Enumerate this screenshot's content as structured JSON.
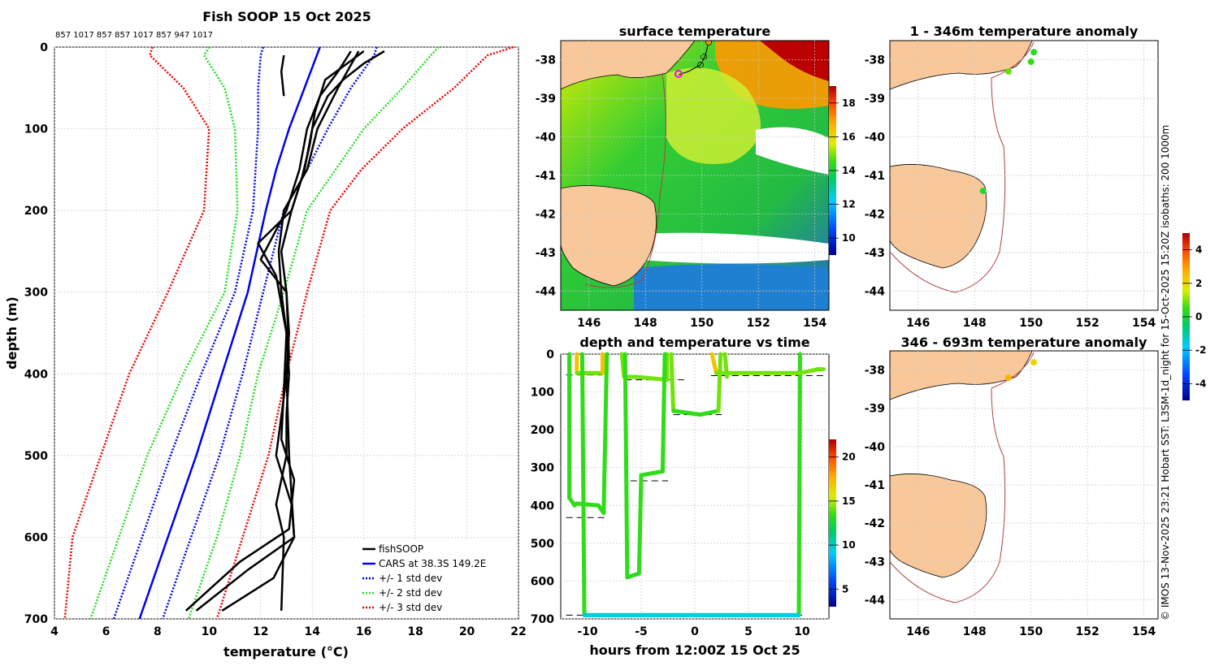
{
  "footer_text": "© IMOS 13-Nov-2025 23:21 Hobart SST: L3SM-1d_night for 15-Oct-2025 15:20Z isobaths: 200  1000m",
  "chart_data": [
    {
      "type": "line",
      "title": "Fish SOOP 15 Oct 2025",
      "subtitle": "857 1017 857 857 1017 857 947 1017",
      "xlabel": "temperature (°C)",
      "ylabel": "depth (m)",
      "xlim": [
        4,
        22
      ],
      "ylim": [
        700,
        0
      ],
      "xticks": [
        4,
        6,
        8,
        10,
        12,
        14,
        16,
        18,
        20,
        22
      ],
      "yticks": [
        0,
        100,
        200,
        300,
        400,
        500,
        600,
        700
      ],
      "legend_position": "bottom-right",
      "legend": [
        "fishSOOP",
        "CARS at 38.3S 149.2E",
        "+/- 1 std dev",
        "+/- 2 std dev",
        "+/- 3 std dev"
      ],
      "colors": {
        "fishsoop": "#000000",
        "cars": "#0000ee",
        "std1": "#0000ee",
        "std2": "#22dd22",
        "std3": "#ee0000"
      },
      "series": [
        {
          "name": "CARS at 38.3S 149.2E",
          "depth": [
            0,
            50,
            100,
            150,
            200,
            300,
            400,
            500,
            600,
            700
          ],
          "temp": [
            14.3,
            13.7,
            13.1,
            12.6,
            12.2,
            11.5,
            10.5,
            9.5,
            8.4,
            7.3
          ]
        },
        {
          "name": "-1 std",
          "depth": [
            0,
            10,
            50,
            100,
            200,
            300,
            400,
            500,
            600,
            700
          ],
          "temp": [
            12.1,
            12.0,
            11.9,
            11.9,
            11.7,
            11.0,
            9.7,
            8.5,
            7.4,
            6.3
          ]
        },
        {
          "name": "+1 std",
          "depth": [
            0,
            10,
            50,
            100,
            150,
            200,
            300,
            400,
            500,
            600,
            700
          ],
          "temp": [
            16.5,
            16.4,
            15.5,
            14.6,
            13.8,
            12.9,
            12.1,
            11.3,
            10.4,
            9.3,
            8.2
          ]
        },
        {
          "name": "-2 std",
          "depth": [
            0,
            10,
            50,
            100,
            200,
            300,
            400,
            500,
            600,
            700
          ],
          "temp": [
            10.0,
            9.8,
            10.6,
            11.0,
            11.1,
            10.6,
            9.0,
            7.6,
            6.5,
            5.4
          ]
        },
        {
          "name": "+2 std",
          "depth": [
            0,
            10,
            50,
            100,
            150,
            200,
            300,
            400,
            500,
            600,
            700
          ],
          "temp": [
            18.9,
            18.6,
            17.5,
            16.0,
            14.9,
            13.8,
            12.9,
            11.9,
            11.2,
            10.3,
            9.2
          ]
        },
        {
          "name": "-3 std",
          "depth": [
            0,
            10,
            50,
            100,
            200,
            300,
            400,
            500,
            600,
            700
          ],
          "temp": [
            7.8,
            7.7,
            9.0,
            10.0,
            9.8,
            8.4,
            6.9,
            5.8,
            4.7,
            4.4
          ]
        },
        {
          "name": "+3 std",
          "depth": [
            0,
            10,
            50,
            100,
            150,
            200,
            300,
            400,
            500,
            600,
            700
          ],
          "temp": [
            21.8,
            20.8,
            19.5,
            17.5,
            15.9,
            14.7,
            13.8,
            13.0,
            12.3,
            11.3,
            10.3
          ]
        },
        {
          "name": "fishSOOP 1",
          "depth": [
            5,
            20,
            40,
            60,
            100,
            150,
            200,
            250,
            300,
            350,
            400,
            500,
            600,
            650,
            690
          ],
          "temp": [
            16.8,
            16.0,
            15.2,
            14.6,
            14.0,
            13.7,
            13.2,
            12.8,
            13.0,
            13.1,
            13.0,
            13.1,
            13.3,
            12.5,
            10.5
          ]
        },
        {
          "name": "fishSOOP 2",
          "depth": [
            5,
            30,
            60,
            100,
            150,
            200,
            260,
            300,
            380,
            500,
            560,
            600,
            640,
            690
          ],
          "temp": [
            15.5,
            15.0,
            14.3,
            13.8,
            13.5,
            13.0,
            12.0,
            13.0,
            13.1,
            12.6,
            13.2,
            13.3,
            11.5,
            9.5
          ]
        },
        {
          "name": "fishSOOP 3",
          "depth": [
            5,
            40,
            80,
            120,
            160,
            200,
            240,
            280,
            350,
            420,
            480,
            530,
            590,
            630,
            690
          ],
          "temp": [
            16.0,
            14.5,
            14.1,
            13.9,
            13.6,
            13.2,
            11.9,
            12.6,
            13.0,
            12.9,
            12.8,
            13.3,
            13.1,
            11.2,
            9.1
          ]
        },
        {
          "name": "fishSOOP 4",
          "depth": [
            5,
            50,
            100,
            150,
            200,
            250,
            300,
            350,
            400,
            450,
            500,
            560,
            600,
            690
          ],
          "temp": [
            15.8,
            15.0,
            14.2,
            13.8,
            12.9,
            12.7,
            12.8,
            13.0,
            13.1,
            13.0,
            13.0,
            12.6,
            12.9,
            12.8
          ]
        },
        {
          "name": "fishSOOP 5",
          "depth": [
            10,
            30,
            60
          ],
          "temp": [
            12.9,
            12.8,
            12.9
          ]
        }
      ]
    },
    {
      "type": "heatmap",
      "title": "surface temperature",
      "xlim": [
        145,
        154.5
      ],
      "ylim": [
        -44.5,
        -37.5
      ],
      "xticks": [
        146,
        148,
        150,
        152,
        154
      ],
      "yticks": [
        -38,
        -39,
        -40,
        -41,
        -42,
        -43,
        -44
      ],
      "colorbar": {
        "ticks": [
          10,
          12,
          14,
          16,
          18
        ],
        "range": [
          9,
          19
        ]
      },
      "track": [
        [
          150.7,
          -37.6
        ],
        [
          150.6,
          -37.8
        ],
        [
          150.5,
          -38.0
        ],
        [
          150.0,
          -38.2
        ],
        [
          149.5,
          -38.3
        ],
        [
          149.2,
          -38.4
        ]
      ],
      "current_position": [
        149.2,
        -38.4
      ]
    },
    {
      "type": "line",
      "title": "depth and temperature vs time",
      "xlabel": "hours from 12:00Z 15 Oct 25",
      "xlim": [
        -12.5,
        12.5
      ],
      "ylim": [
        700,
        0
      ],
      "xticks": [
        -10,
        -5,
        0,
        5,
        10
      ],
      "yticks": [
        0,
        100,
        200,
        300,
        400,
        500,
        600,
        700
      ],
      "colorbar": {
        "ticks": [
          5,
          10,
          15,
          20
        ],
        "range": [
          3,
          22
        ]
      },
      "series": [
        {
          "name": "depth",
          "hours": [
            -11.7,
            -11.7,
            -11.4,
            -11.2,
            -11.1,
            -10.8,
            -10.7,
            -10.5,
            -10.3,
            -10.0,
            -9.8,
            -9.5,
            -9.2,
            -8.0,
            -7.2,
            -6.8,
            -6.6,
            -6.4,
            -6.4,
            -6.2,
            -5.0,
            -4.0,
            -3.5,
            -3.4,
            -2.8,
            -2.6,
            -2.4,
            -2.3,
            -2.0,
            -1.0,
            0.0,
            1.0,
            1.3,
            1.6,
            2.5,
            2.7,
            3.0,
            5.0,
            8.0,
            9.5,
            9.8,
            10.0,
            10.2,
            12.0
          ],
          "depth": [
            0,
            380,
            400,
            400,
            0,
            40,
            0,
            0,
            690,
            690,
            690,
            690,
            690,
            690,
            690,
            690,
            690,
            690,
            690,
            690,
            690,
            690,
            690,
            690,
            690,
            690,
            690,
            690,
            690,
            690,
            690,
            690,
            690,
            690,
            690,
            690,
            690,
            690,
            690,
            690,
            690,
            690,
            40,
            40
          ]
        }
      ],
      "reference_depths": [
        {
          "from": -12,
          "to": -8.6,
          "depth": 55
        },
        {
          "from": -12,
          "to": -8.4,
          "depth": 432
        },
        {
          "from": -6.5,
          "to": -1.0,
          "depth": 68
        },
        {
          "from": -6.0,
          "to": -2.5,
          "depth": 335
        },
        {
          "from": -2.0,
          "to": 2.5,
          "depth": 160
        },
        {
          "from": 1.5,
          "to": 12.0,
          "depth": 57
        },
        {
          "from": -12,
          "to": 10,
          "depth": 690
        }
      ]
    },
    {
      "type": "heatmap",
      "title": "1 - 346m temperature anomaly",
      "xlim": [
        145,
        154.5
      ],
      "ylim": [
        -44.5,
        -37.5
      ],
      "xticks": [
        146,
        148,
        150,
        152,
        154
      ],
      "yticks": [
        -38,
        -39,
        -40,
        -41,
        -42,
        -43,
        -44
      ],
      "colorbar": {
        "ticks": [
          4,
          2,
          0,
          -2,
          -4
        ],
        "range": [
          -5,
          5
        ]
      },
      "points": [
        {
          "lon": 150.1,
          "lat": -37.8,
          "anomaly": 0.3
        },
        {
          "lon": 150.0,
          "lat": -38.05,
          "anomaly": 0.4
        },
        {
          "lon": 149.2,
          "lat": -38.3,
          "anomaly": 0.8
        },
        {
          "lon": 148.3,
          "lat": -41.4,
          "anomaly": 0.2
        }
      ]
    },
    {
      "type": "heatmap",
      "title": "346 - 693m temperature anomaly",
      "xlim": [
        145,
        154.5
      ],
      "ylim": [
        -44.5,
        -37.5
      ],
      "xticks": [
        146,
        148,
        150,
        152,
        154
      ],
      "yticks": [
        -38,
        -39,
        -40,
        -41,
        -42,
        -43,
        -44
      ],
      "points": [
        {
          "lon": 150.1,
          "lat": -37.8,
          "anomaly": 2.0
        },
        {
          "lon": 149.2,
          "lat": -38.2,
          "anomaly": 2.6
        }
      ]
    }
  ]
}
